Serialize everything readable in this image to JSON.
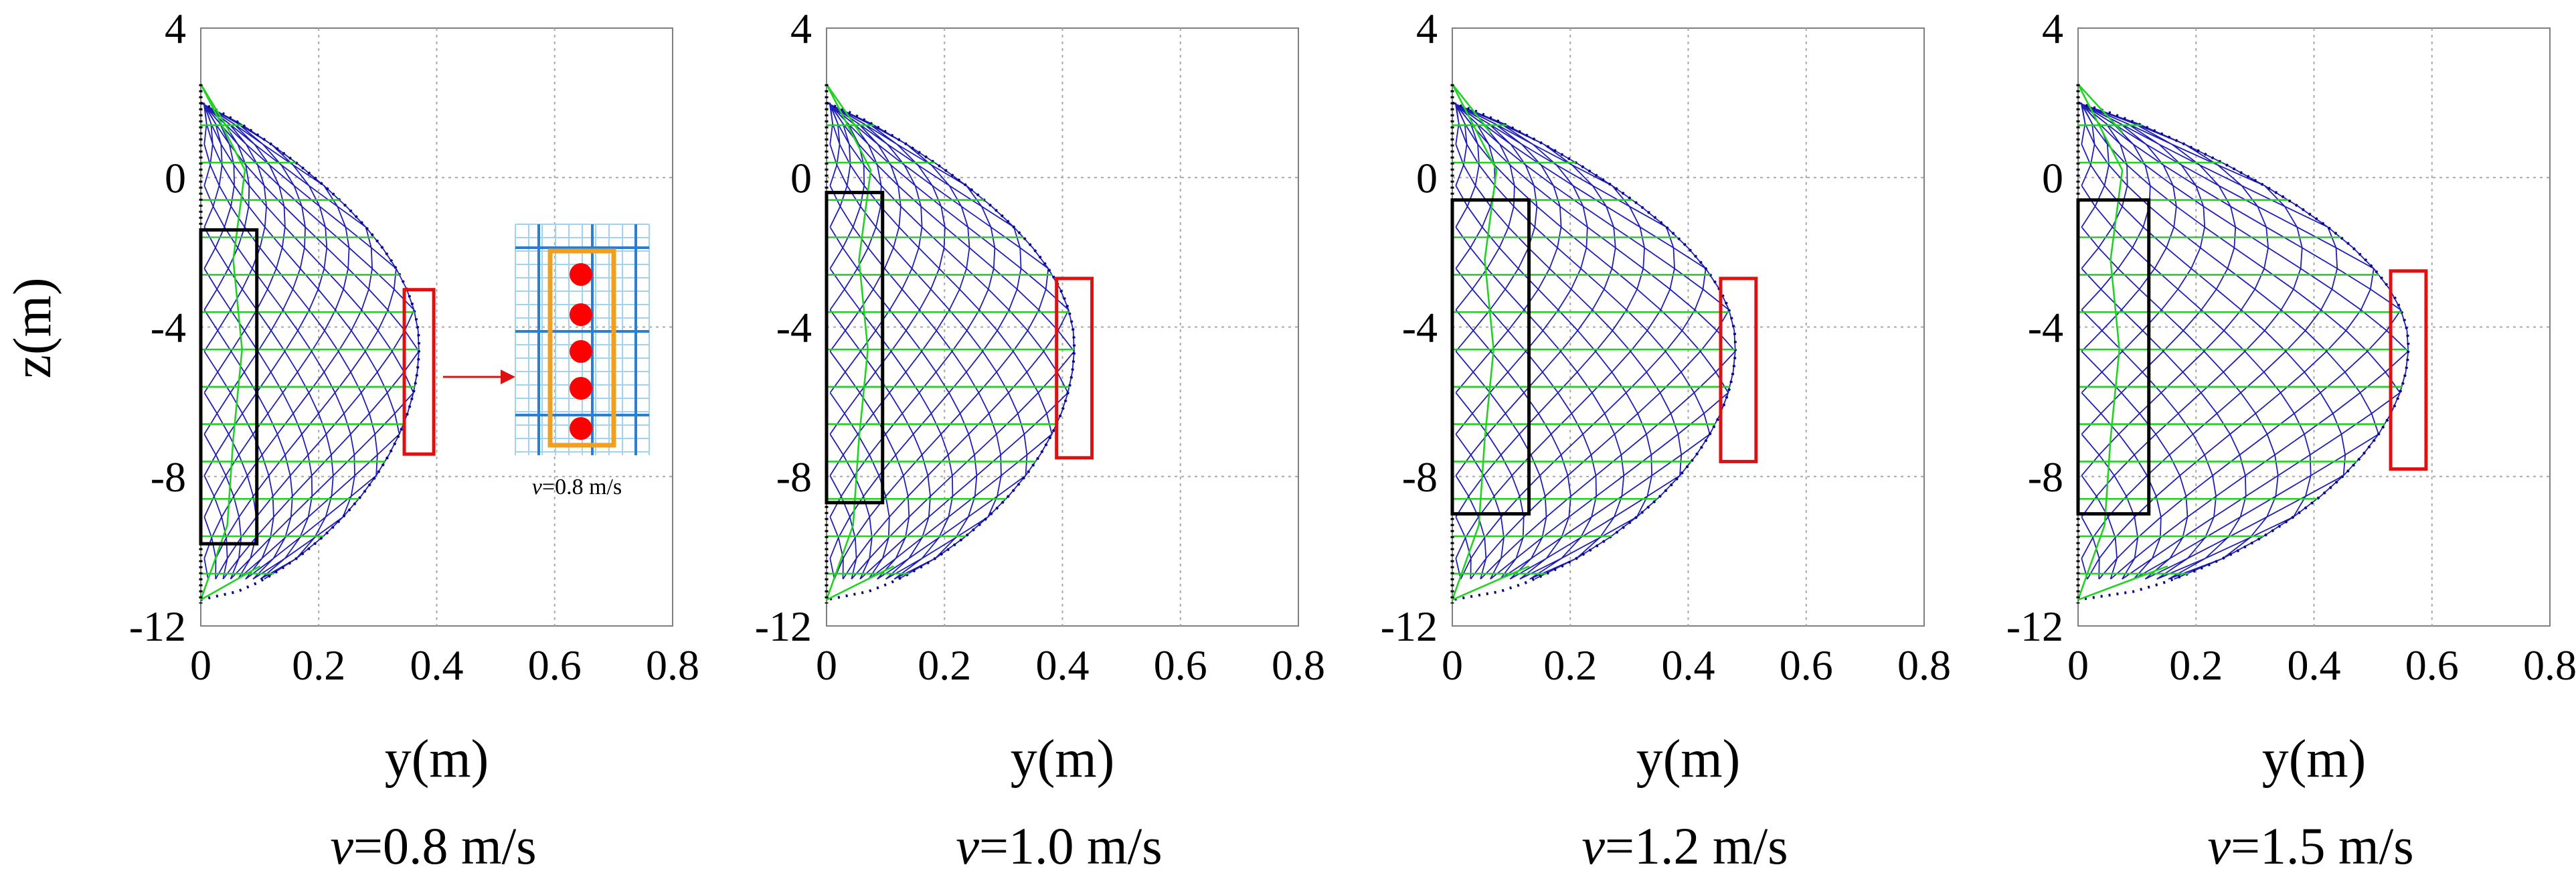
{
  "figure": {
    "y_axis_label": "z(m)",
    "inset_caption": {
      "var": "v",
      "rest": "=0.8 m/s"
    }
  },
  "chart_data": [
    {
      "type": "line",
      "title_var": "v",
      "title_rest": "=0.8 m/s",
      "xlabel": "y(m)",
      "ylabel": "z(m)",
      "xlim": [
        0,
        0.8
      ],
      "ylim": [
        -12,
        4
      ],
      "xticks": [
        "0",
        "0.2",
        "0.4",
        "0.6",
        "0.8"
      ],
      "yticks": [
        "4",
        "0",
        "-4",
        "-8",
        "-12"
      ],
      "grid": true,
      "net_top_z": 2.0,
      "net_bottom_z": -11.3,
      "max_y": 0.37,
      "belly_z": -4.5,
      "black_box": {
        "y0": 0.0,
        "y1": 0.095,
        "z0": -1.4,
        "z1": -9.8
      },
      "red_box": {
        "y0": 0.345,
        "y1": 0.395,
        "z0": -3.0,
        "z1": -7.4
      }
    },
    {
      "type": "line",
      "title_var": "v",
      "title_rest": "=1.0 m/s",
      "xlabel": "y(m)",
      "ylabel": "",
      "xlim": [
        0,
        0.8
      ],
      "ylim": [
        -12,
        4
      ],
      "xticks": [
        "0",
        "0.2",
        "0.4",
        "0.6",
        "0.8"
      ],
      "yticks": [
        "4",
        "0",
        "-4",
        "-8",
        "-12"
      ],
      "grid": true,
      "net_top_z": 2.0,
      "net_bottom_z": -11.3,
      "max_y": 0.42,
      "belly_z": -4.5,
      "black_box": {
        "y0": 0.0,
        "y1": 0.095,
        "z0": -0.4,
        "z1": -8.7
      },
      "red_box": {
        "y0": 0.39,
        "y1": 0.45,
        "z0": -2.7,
        "z1": -7.5
      }
    },
    {
      "type": "line",
      "title_var": "v",
      "title_rest": "=1.2 m/s",
      "xlabel": "y(m)",
      "ylabel": "",
      "xlim": [
        0,
        0.8
      ],
      "ylim": [
        -12,
        4
      ],
      "xticks": [
        "0",
        "0.2",
        "0.4",
        "0.6",
        "0.8"
      ],
      "yticks": [
        "4",
        "0",
        "-4",
        "-8",
        "-12"
      ],
      "grid": true,
      "net_top_z": 2.0,
      "net_bottom_z": -11.3,
      "max_y": 0.48,
      "belly_z": -4.5,
      "black_box": {
        "y0": 0.0,
        "y1": 0.13,
        "z0": -0.6,
        "z1": -9.0
      },
      "red_box": {
        "y0": 0.455,
        "y1": 0.515,
        "z0": -2.7,
        "z1": -7.6
      }
    },
    {
      "type": "line",
      "title_var": "v",
      "title_rest": "=1.5 m/s",
      "xlabel": "y(m)",
      "ylabel": "",
      "xlim": [
        0,
        0.8
      ],
      "ylim": [
        -12,
        4
      ],
      "xticks": [
        "0",
        "0.2",
        "0.4",
        "0.6",
        "0.8"
      ],
      "yticks": [
        "4",
        "0",
        "-4",
        "-8",
        "-12"
      ],
      "grid": true,
      "net_top_z": 2.0,
      "net_bottom_z": -11.3,
      "max_y": 0.56,
      "belly_z": -4.5,
      "black_box": {
        "y0": 0.0,
        "y1": 0.12,
        "z0": -0.6,
        "z1": -9.0
      },
      "red_box": {
        "y0": 0.53,
        "y1": 0.59,
        "z0": -2.5,
        "z1": -7.8
      }
    }
  ]
}
